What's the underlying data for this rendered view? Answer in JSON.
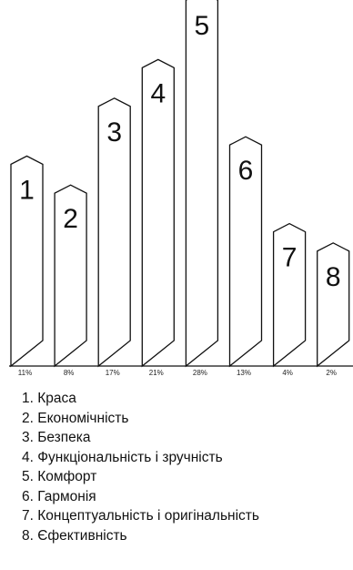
{
  "chart_data": {
    "type": "bar",
    "categories": [
      "1",
      "2",
      "3",
      "4",
      "5",
      "6",
      "7",
      "8"
    ],
    "values": [
      11,
      8,
      17,
      21,
      28,
      13,
      4,
      2
    ],
    "value_labels": [
      "11%",
      "8%",
      "17%",
      "21%",
      "28%",
      "13%",
      "4%",
      "2%"
    ],
    "bar_style": "pointed-top outline columns",
    "title": "",
    "xlabel": "",
    "ylabel": "",
    "legend": [
      "1. Краса",
      "2. Економічність",
      "3. Безпека",
      "4. Функціональність і зручність",
      "5. Комфорт",
      "6. Гармонія",
      "7. Концептуальність і оригінальність",
      "8. Єфективність"
    ],
    "legend_placement": "bottom",
    "grid": false
  },
  "colors": {
    "stroke": "#111111",
    "fill": "#ffffff",
    "text": "#111111"
  }
}
